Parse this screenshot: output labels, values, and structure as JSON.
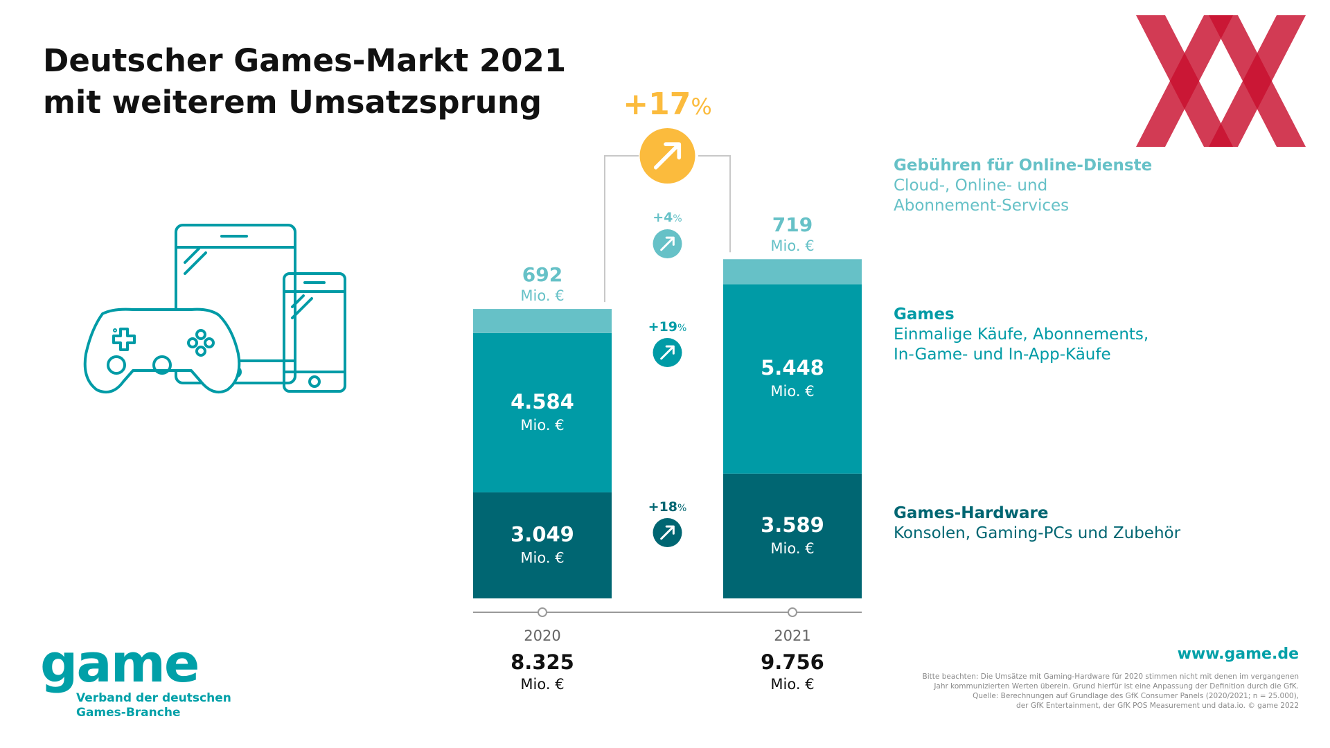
{
  "title": {
    "line1": "Deutscher Games-Markt 2021",
    "line2": "mit weiterem Umsatzsprung"
  },
  "colors": {
    "online": "#66c1c7",
    "games": "#009ba6",
    "hardware": "#006672",
    "highlight": "#fbbb3d",
    "brand_red": "#c8102e"
  },
  "chart_data": {
    "type": "bar",
    "stacked": true,
    "unit": "Mio. €",
    "categories": [
      "2020",
      "2021"
    ],
    "series": [
      {
        "name": "Games-Hardware",
        "values": [
          3049,
          3589
        ]
      },
      {
        "name": "Games",
        "values": [
          4584,
          5448
        ]
      },
      {
        "name": "Gebühren für Online-Dienste",
        "values": [
          692,
          719
        ]
      }
    ],
    "labels": {
      "hardware": [
        "3.049",
        "3.589"
      ],
      "games": [
        "4.584",
        "5.448"
      ],
      "online": [
        "692",
        "719"
      ],
      "unit": "Mio. €"
    },
    "totals": {
      "values": [
        8325,
        9756
      ],
      "labels": [
        "8.325",
        "9.756"
      ],
      "unit": "Mio. €"
    },
    "growth": {
      "total": {
        "num": "+17",
        "pct": "%"
      },
      "online": {
        "num": "+4",
        "pct": "%"
      },
      "games": {
        "num": "+19",
        "pct": "%"
      },
      "hardware": {
        "num": "+18",
        "pct": "%"
      }
    },
    "legend_position": "right"
  },
  "legend": [
    {
      "head": "Gebühren für Online-Dienste",
      "lines": [
        "Cloud-, Online- und",
        "Abonnement-Services"
      ]
    },
    {
      "head": "Games",
      "lines": [
        "Einmalige Käufe, Abonnements,",
        "In-Game- und In-App-Käufe"
      ]
    },
    {
      "head": "Games-Hardware",
      "lines": [
        "Konsolen, Gaming-PCs und Zubehör"
      ]
    }
  ],
  "icons": {
    "devices": "game-devices-icon",
    "arrow": "arrow-up-right-icon",
    "logo": "xx-logo-icon"
  },
  "brand": {
    "word": "game",
    "sub1": "Verband der deutschen",
    "sub2": "Games-Branche",
    "url": "www.game.de"
  },
  "footnote": [
    "Bitte beachten: Die Umsätze mit Gaming-Hardware für 2020 stimmen nicht mit denen im vergangenen",
    "Jahr kommunizierten Werten überein. Grund hierfür ist eine Anpassung der Definition durch die GfK.",
    "Quelle: Berechnungen auf Grundlage des GfK Consumer Panels (2020/2021; n = 25.000),",
    "der GfK Entertainment, der GfK POS Measurement und data.io. © game 2022"
  ]
}
